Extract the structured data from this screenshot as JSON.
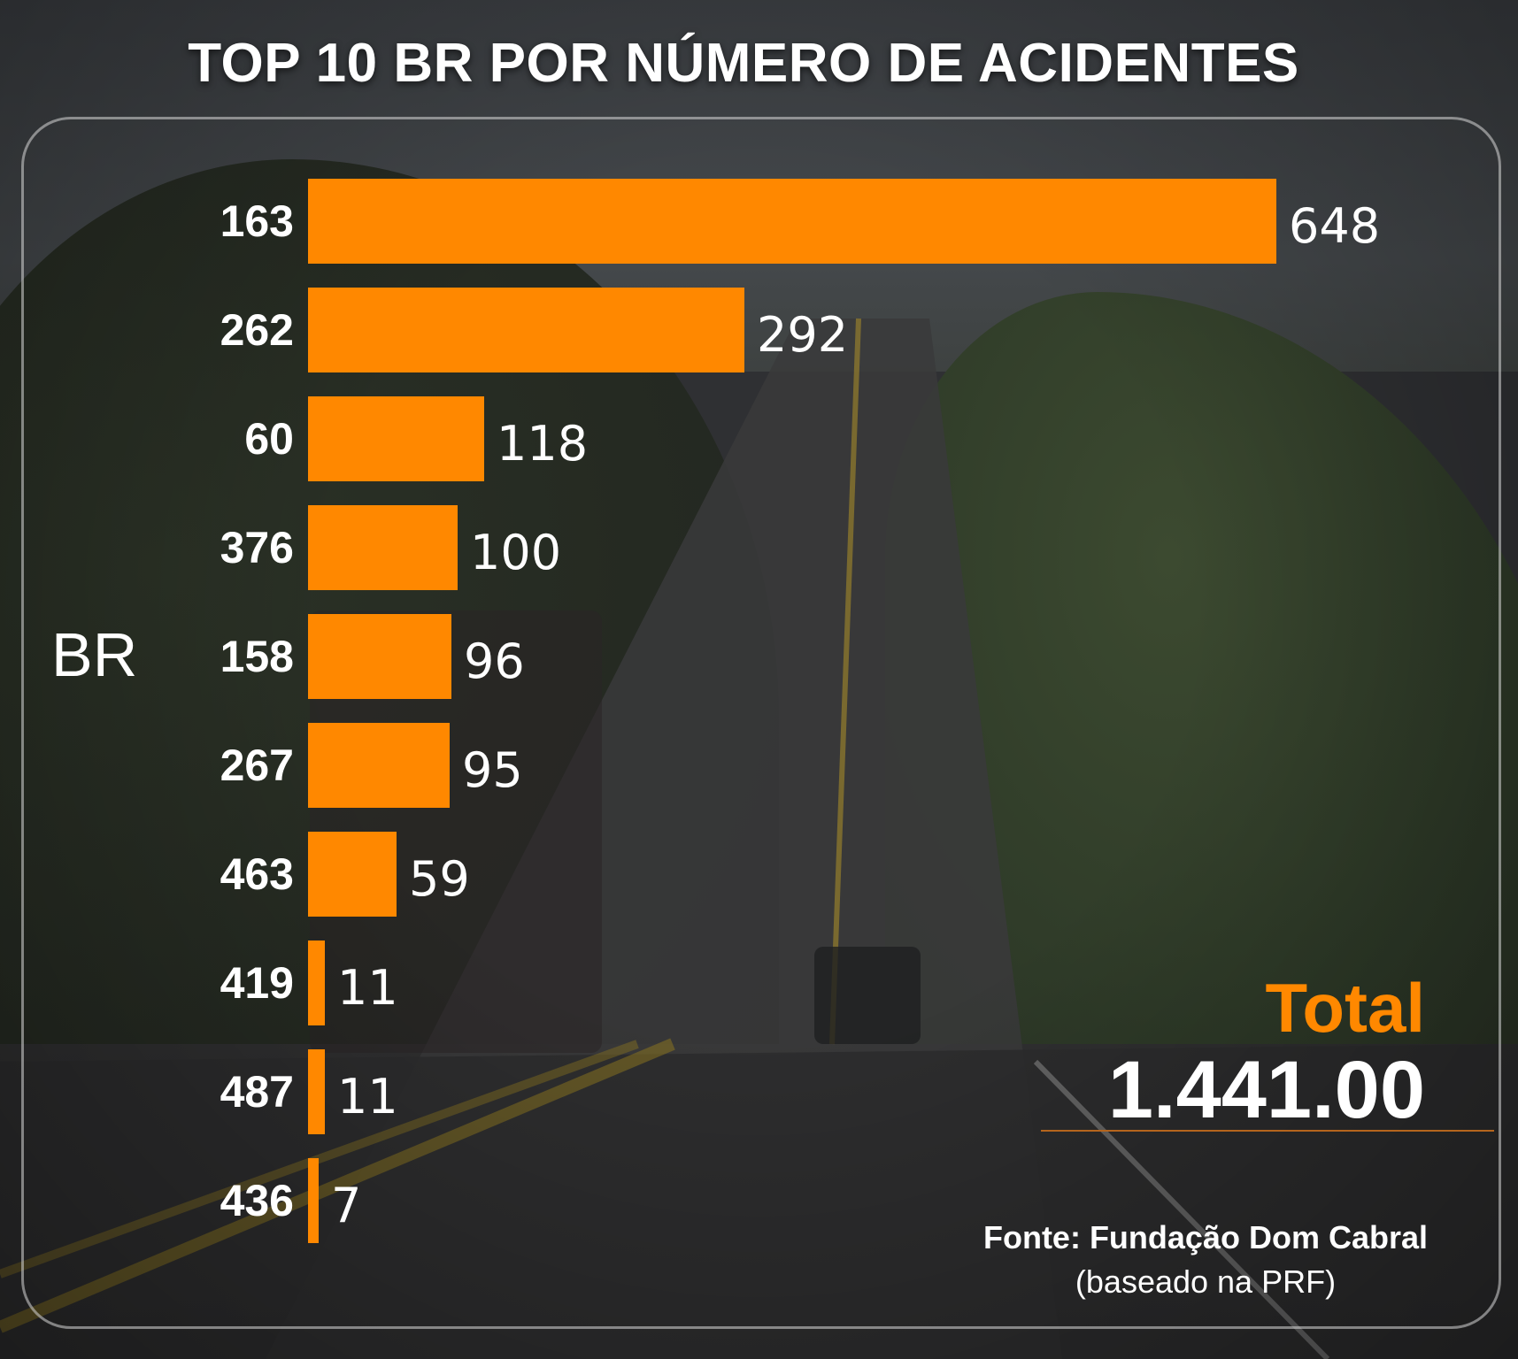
{
  "title": "TOP 10 BR POR NÚMERO DE ACIDENTES",
  "axis_name": "BR",
  "colors": {
    "bar": "#ff8800",
    "text": "#ffffff",
    "accent": "#ff8800"
  },
  "total": {
    "label": "Total",
    "value": "1.441.00"
  },
  "source": {
    "line1": "Fonte: Fundação Dom Cabral",
    "line2": "(baseado na PRF)"
  },
  "chart_data": {
    "type": "bar",
    "orientation": "horizontal",
    "title": "TOP 10 BR POR NÚMERO DE ACIDENTES",
    "ylabel": "BR",
    "categories": [
      "163",
      "262",
      "60",
      "376",
      "158",
      "267",
      "463",
      "419",
      "487",
      "436"
    ],
    "values": [
      648,
      292,
      118,
      100,
      96,
      95,
      59,
      11,
      11,
      7
    ],
    "value_labels": [
      "648",
      "292",
      "118",
      "100",
      "96",
      "95",
      "59",
      "11",
      "11",
      "7"
    ],
    "grid": false,
    "legend": "none"
  }
}
